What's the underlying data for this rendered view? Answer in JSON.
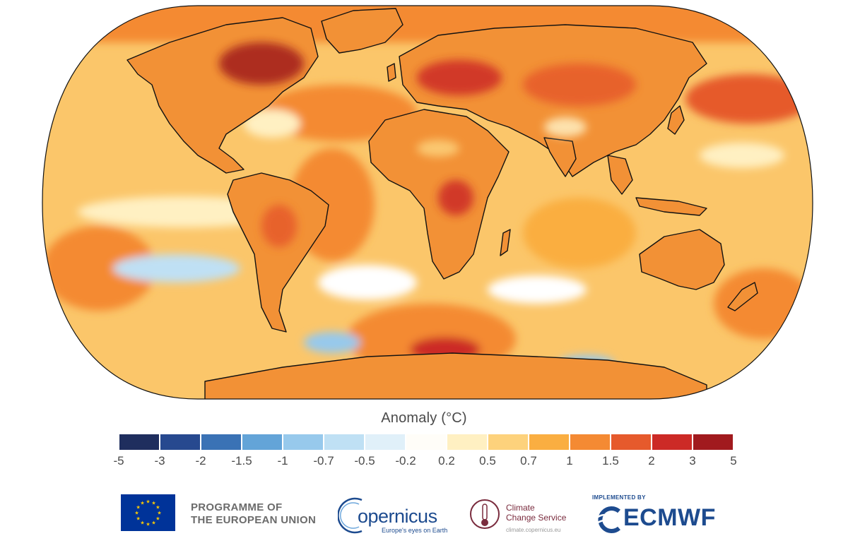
{
  "legend": {
    "title": "Anomaly (°C)",
    "ticks": [
      "-5",
      "-3",
      "-2",
      "-1.5",
      "-1",
      "-0.7",
      "-0.5",
      "-0.2",
      "0.2",
      "0.5",
      "0.7",
      "1",
      "1.5",
      "2",
      "3",
      "5"
    ],
    "colors": [
      "#1f2e5e",
      "#27498f",
      "#3a72b5",
      "#63a4d8",
      "#97c9ec",
      "#bfe0f4",
      "#e0f0f9",
      "#ffffff",
      "#fff0c2",
      "#fdd27c",
      "#faae41",
      "#f48a33",
      "#e65a2c",
      "#cc2a26",
      "#a11a1e"
    ]
  },
  "map": {
    "ocean_color": "#fbc66a",
    "land_color": "#f29136",
    "outline_color": "#111111"
  },
  "footer": {
    "eu_line1": "PROGRAMME OF",
    "eu_line2": "THE EUROPEAN UNION",
    "copernicus_word": "opernicus",
    "copernicus_tagline": "Europe's eyes on Earth",
    "c3s_line1": "Climate",
    "c3s_line2": "Change Service",
    "c3s_url": "climate.copernicus.eu",
    "ecmwf_implemented": "IMPLEMENTED BY",
    "ecmwf_word": "ECMWF"
  }
}
